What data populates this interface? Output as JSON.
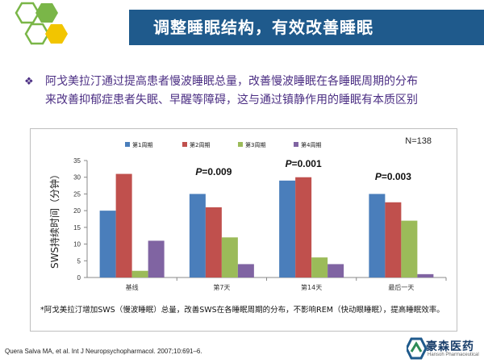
{
  "title": "调整睡眠结构，有效改善睡眠",
  "bullet": {
    "marker": "❖",
    "lines": [
      "阿戈美拉汀通过提高患者慢波睡眠总量，改善慢波睡眠在各睡眠周期的分布",
      "来改善抑郁症患者失眠、早醒等障碍，这与通过镇静作用的睡眠有本质区别"
    ]
  },
  "chart_data": {
    "type": "bar",
    "categories": [
      "基线",
      "第7天",
      "第14天",
      "最后一天"
    ],
    "series": [
      {
        "name": "第1周期",
        "color": "#4a7ebb",
        "values": [
          20,
          25,
          29,
          25
        ]
      },
      {
        "name": "第2周期",
        "color": "#c0504d",
        "values": [
          31,
          21,
          30,
          22.5
        ]
      },
      {
        "name": "第3周期",
        "color": "#9bbb59",
        "values": [
          2,
          12,
          6,
          17
        ]
      },
      {
        "name": "第4周期",
        "color": "#8064a2",
        "values": [
          11,
          4,
          4,
          1
        ]
      }
    ],
    "ylabel": "SWS持续时间（分钟）",
    "ylim": [
      0,
      35
    ],
    "yticks": [
      0,
      5,
      10,
      15,
      20,
      25,
      30,
      35
    ],
    "grid": false,
    "legend": "top",
    "n_label": "N=138",
    "annotations": [
      {
        "category": "第7天",
        "p_prefix": "P",
        "p_value": "=0.009"
      },
      {
        "category": "第14天",
        "p_prefix": "P",
        "p_value": "=0.001"
      },
      {
        "category": "最后一天",
        "p_prefix": "P",
        "p_value": "=0.003"
      }
    ]
  },
  "footnote": "*阿戈美拉汀增加SWS（慢波睡眠）总量，改善SWS在各睡眠周期的分布，不影响REM（快动眼睡眠），提高睡眠效率。",
  "reference": "Quera Salva MA, et al. Int J Neuropsychopharmacol. 2007;10:691–6.",
  "brand": {
    "name": "豪森医药",
    "sub": "Hansoh Pharmaceutical",
    "colors": [
      "#1f5a8c",
      "#2e8b57"
    ]
  },
  "logo": {
    "colors": [
      "#7ab648",
      "#f2c500",
      "#ffffff"
    ]
  }
}
